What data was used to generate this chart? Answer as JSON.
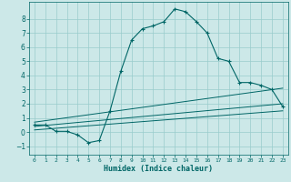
{
  "xlabel": "Humidex (Indice chaleur)",
  "bg_color": "#cce8e8",
  "grid_color": "#99cccc",
  "line_color": "#006666",
  "xlim": [
    -0.5,
    23.5
  ],
  "ylim": [
    -1.6,
    9.2
  ],
  "xticks": [
    0,
    1,
    2,
    3,
    4,
    5,
    6,
    7,
    8,
    9,
    10,
    11,
    12,
    13,
    14,
    15,
    16,
    17,
    18,
    19,
    20,
    21,
    22,
    23
  ],
  "yticks": [
    -1,
    0,
    1,
    2,
    3,
    4,
    5,
    6,
    7,
    8
  ],
  "main_x": [
    0,
    1,
    2,
    3,
    4,
    5,
    6,
    7,
    8,
    9,
    10,
    11,
    12,
    13,
    14,
    15,
    16,
    17,
    18,
    19,
    20,
    21,
    22,
    23
  ],
  "main_y": [
    0.5,
    0.5,
    0.05,
    0.05,
    -0.2,
    -0.75,
    -0.6,
    1.5,
    4.3,
    6.5,
    7.3,
    7.5,
    7.8,
    8.7,
    8.5,
    7.8,
    7.0,
    5.2,
    5.0,
    3.5,
    3.5,
    3.3,
    3.0,
    1.8
  ],
  "line2_x": [
    0,
    23
  ],
  "line2_y": [
    0.7,
    3.1
  ],
  "line3_x": [
    0,
    23
  ],
  "line3_y": [
    0.4,
    2.0
  ],
  "line4_x": [
    0,
    23
  ],
  "line4_y": [
    0.15,
    1.5
  ]
}
